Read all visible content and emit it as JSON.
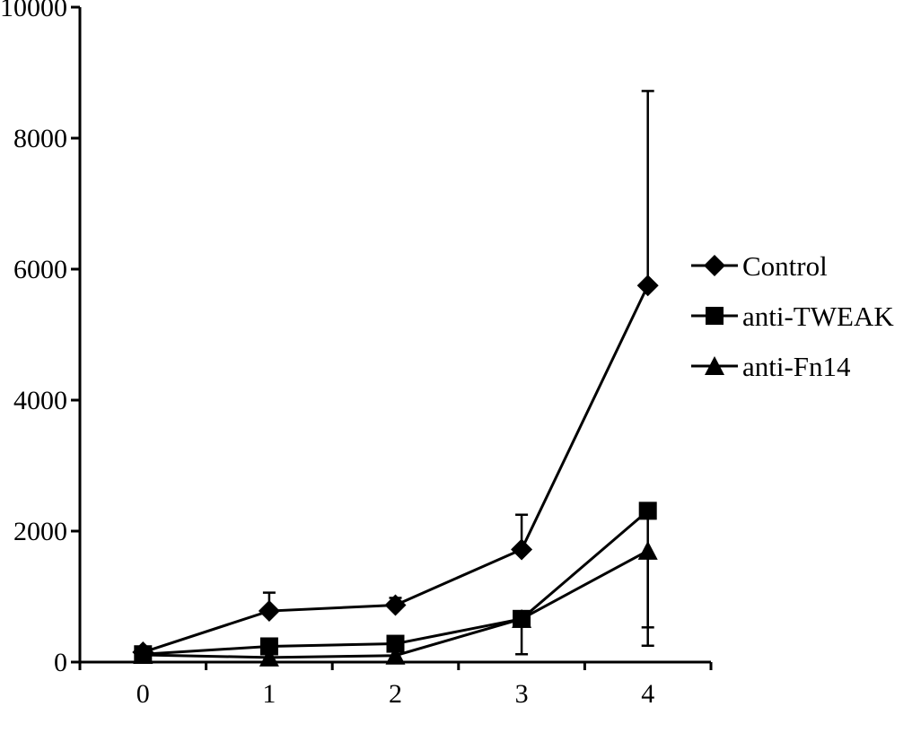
{
  "chart_data": {
    "type": "line",
    "title": "",
    "xlabel": "",
    "ylabel": "",
    "x": [
      0,
      1,
      2,
      3,
      4
    ],
    "x_tick_labels": [
      "0",
      "1",
      "2",
      "3",
      "4"
    ],
    "ylim": [
      0,
      10000
    ],
    "y_ticks": [
      0,
      2000,
      4000,
      6000,
      8000,
      10000
    ],
    "y_tick_labels": [
      "0",
      "2000",
      "4000",
      "6000",
      "8000",
      "10000"
    ],
    "grid": false,
    "legend_position": "right",
    "series": [
      {
        "name": "Control",
        "marker": "diamond",
        "values": [
          150,
          780,
          870,
          1720,
          5750
        ],
        "error_upper": [
          null,
          1060,
          980,
          2250,
          8720
        ],
        "error_lower": [
          null,
          null,
          null,
          null,
          null
        ]
      },
      {
        "name": "anti-TWEAK",
        "marker": "square",
        "values": [
          120,
          240,
          280,
          660,
          2310
        ],
        "error_upper": [
          null,
          null,
          null,
          null,
          null
        ],
        "error_lower": [
          null,
          null,
          null,
          120,
          250
        ]
      },
      {
        "name": "anti-Fn14",
        "marker": "triangle",
        "values": [
          110,
          70,
          100,
          660,
          1700
        ],
        "error_upper": [
          null,
          null,
          null,
          null,
          null
        ],
        "error_lower": [
          null,
          null,
          null,
          null,
          530
        ]
      }
    ]
  }
}
